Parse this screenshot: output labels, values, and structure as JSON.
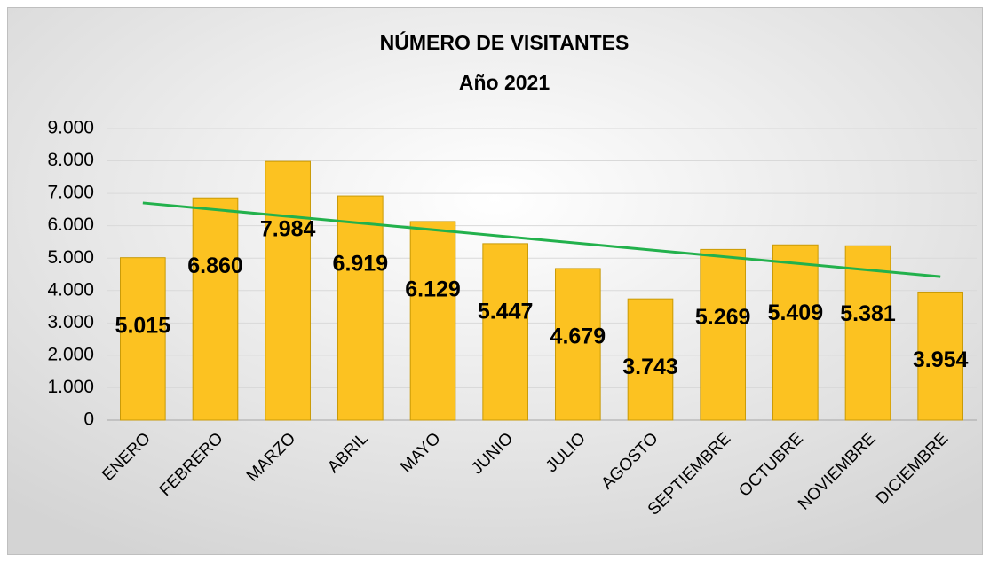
{
  "chart_data": {
    "type": "bar",
    "title": "NÚMERO DE VISITANTES",
    "subtitle": "Año 2021",
    "categories": [
      "ENERO",
      "FEBRERO",
      "MARZO",
      "ABRIL",
      "MAYO",
      "JUNIO",
      "JULIO",
      "AGOSTO",
      "SEPTIEMBRE",
      "OCTUBRE",
      "NOVIEMBRE",
      "DICIEMBRE"
    ],
    "values": [
      5015,
      6860,
      7984,
      6919,
      6129,
      5447,
      4679,
      3743,
      5269,
      5409,
      5381,
      3954
    ],
    "value_labels": [
      "5.015",
      "6.860",
      "7.984",
      "6.919",
      "6.129",
      "5.447",
      "4.679",
      "3.743",
      "5.269",
      "5.409",
      "5.381",
      "3.954"
    ],
    "color": "#fcc221",
    "ylim": [
      0,
      9000
    ],
    "yticks": [
      0,
      {
        "value": 1000,
        "label": "1.000"
      },
      {
        "value": 2000,
        "label": "2.000"
      },
      {
        "value": 3000,
        "label": "3.000"
      },
      {
        "value": 4000,
        "label": "4.000"
      },
      {
        "value": 5000,
        "label": "5.000"
      },
      {
        "value": 6000,
        "label": "6.000"
      },
      {
        "value": 7000,
        "label": "7.000"
      },
      {
        "value": 8000,
        "label": "8.000"
      },
      {
        "value": 9000,
        "label": "9.000"
      }
    ],
    "grid": true,
    "trendline": {
      "type": "linear",
      "color": "#22b14c"
    }
  }
}
